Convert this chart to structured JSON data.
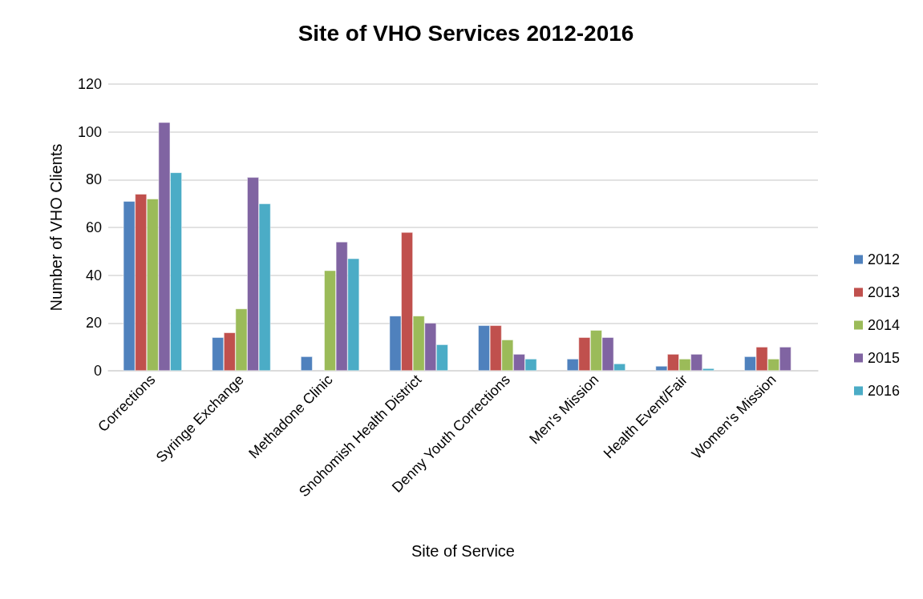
{
  "chart_data": {
    "type": "bar",
    "title": "Site of VHO Services 2012-2016",
    "xlabel": "Site of Service",
    "ylabel": "Number of VHO Clients",
    "categories": [
      "Corrections",
      "Syringe Exchange",
      "Methadone Clinic",
      "Snohomish Health District",
      "Denny Youth Corrections",
      "Men's Mission",
      "Health Event/Fair",
      "Women's Mission"
    ],
    "series": [
      {
        "name": "2012",
        "color": "#4f81bd",
        "values": [
          71,
          14,
          6,
          23,
          19,
          5,
          2,
          6
        ]
      },
      {
        "name": "2013",
        "color": "#c0504d",
        "values": [
          74,
          16,
          null,
          58,
          19,
          14,
          7,
          10
        ]
      },
      {
        "name": "2014",
        "color": "#9bbb59",
        "values": [
          72,
          26,
          42,
          23,
          13,
          17,
          5,
          5
        ]
      },
      {
        "name": "2015",
        "color": "#8064a2",
        "values": [
          104,
          81,
          54,
          20,
          7,
          14,
          7,
          10
        ]
      },
      {
        "name": "2016",
        "color": "#4bacc6",
        "values": [
          83,
          70,
          47,
          11,
          5,
          3,
          1,
          null
        ]
      }
    ],
    "ylim": [
      0,
      120
    ],
    "yticks": [
      0,
      20,
      40,
      60,
      80,
      100,
      120
    ],
    "grid": "y",
    "legend": "right"
  }
}
